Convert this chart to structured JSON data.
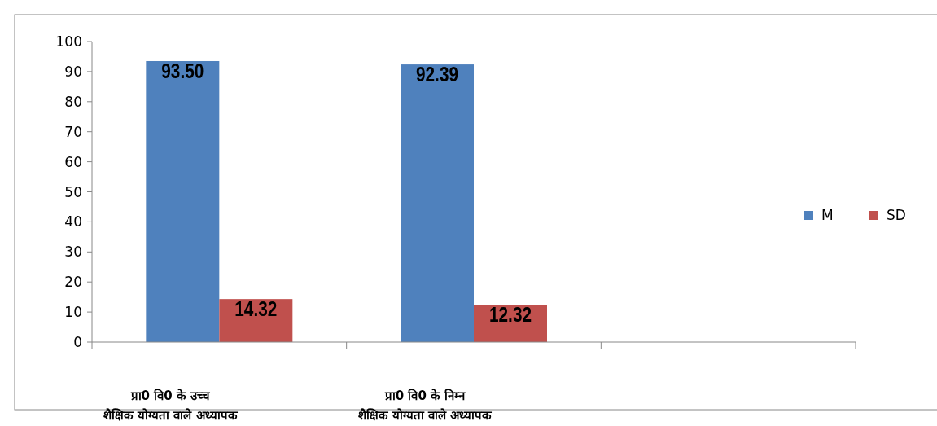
{
  "chart_data": {
    "type": "bar",
    "categories": [
      "प्रा0 वि0 के उच्च शैक्षिक योग्यता वाले अध्यापक",
      "प्रा0 वि0 के निम्न शैक्षिक योग्यता वाले अध्यापक",
      null
    ],
    "series": [
      {
        "name": "M",
        "color": "#4f81bd",
        "values": [
          93.5,
          92.39,
          null
        ],
        "value_labels": [
          "93.50",
          "92.39",
          null
        ]
      },
      {
        "name": "SD",
        "color": "#c0504d",
        "values": [
          14.32,
          12.32,
          null
        ],
        "value_labels": [
          "14.32",
          "12.32",
          null
        ]
      }
    ],
    "ylim": [
      0,
      100
    ],
    "yticks": [
      0,
      10,
      20,
      30,
      40,
      50,
      60,
      70,
      80,
      90,
      100
    ],
    "grid": false,
    "legend": "right"
  }
}
